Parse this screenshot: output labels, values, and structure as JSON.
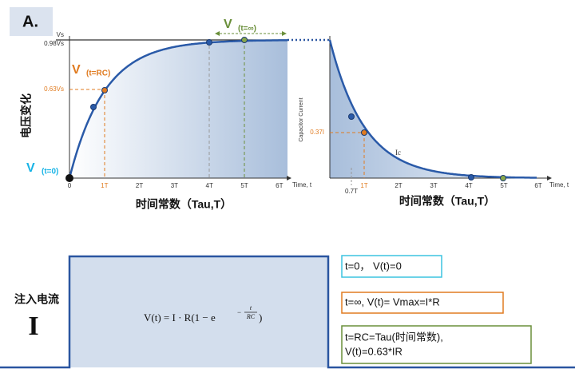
{
  "panel_label": "A.",
  "voltage_chart": {
    "y_axis_title": "电压变化",
    "x_axis_title": "时间常数（Tau,T）",
    "time_label": "Time, t",
    "x_ticks": [
      "0",
      "1T",
      "2T",
      "3T",
      "4T",
      "5T",
      "6T"
    ],
    "y_labels": [
      "Vs",
      "0.98Vs",
      "0.63Vs"
    ],
    "v0": {
      "symbol": "V",
      "subscript": "(t=0)"
    },
    "vrc": {
      "symbol": "V",
      "subscript": "(t=RC)"
    },
    "vinf": {
      "symbol": "V",
      "subscript": "(t=∞)"
    }
  },
  "current_chart": {
    "y_axis_title": "Capacitor Current",
    "x_axis_title": "时间常数（Tau,T）",
    "time_label": "Time, t",
    "x_ticks": [
      "0.7T",
      "1T",
      "2T",
      "3T",
      "4T",
      "5T",
      "6T"
    ],
    "y_label": "0.37I",
    "curve_label": "Ic"
  },
  "input": {
    "label": "注入电流",
    "symbol": "I",
    "formula": {
      "main": "V(t) = I · R(1 − e",
      "exp_sign": "−",
      "exp_num": "t",
      "exp_den": "RC",
      "close": ")"
    }
  },
  "notes": [
    "t=0，  V(t)=0",
    "t=∞, V(t)= Vmax=I*R",
    [
      "t=RC=Tau(时间常数),",
      "V(t)=0.63*IR"
    ]
  ]
}
